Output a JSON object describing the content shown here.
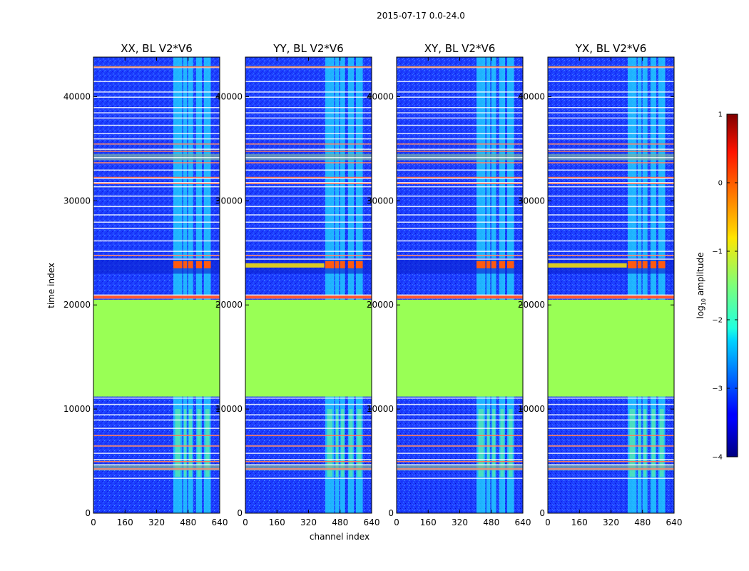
{
  "chart_data": {
    "type": "heatmap",
    "suptitle": "2015-07-17 0.0-24.0",
    "xlabel": "channel index",
    "ylabel": "time index",
    "xlim": [
      0,
      640
    ],
    "ylim": [
      0,
      43800
    ],
    "xticks": [
      0,
      160,
      320,
      480,
      640
    ],
    "yticks": [
      0,
      10000,
      20000,
      30000,
      40000
    ],
    "panels": [
      {
        "title": "XX, BL V2*V6"
      },
      {
        "title": "YY, BL V2*V6"
      },
      {
        "title": "XY, BL V2*V6"
      },
      {
        "title": "YX, BL V2*V6"
      }
    ],
    "colorbar": {
      "label": "log10 amplitude",
      "label_main": "log",
      "label_sub": "10",
      "label_rest": " amplitude",
      "range": [
        -4,
        1
      ],
      "ticks": [
        1,
        0,
        -1,
        -2,
        -3,
        -4
      ],
      "tick_labels": [
        "1",
        "0",
        "−1",
        "−2",
        "−3",
        "−4"
      ],
      "colormap": "jet"
    },
    "flagged_block": {
      "time_range": [
        11200,
        20500
      ],
      "log10_amplitude": -1.2
    },
    "bright_channel_bands": [
      [
        405,
        450
      ],
      [
        455,
        475
      ],
      [
        480,
        505
      ],
      [
        520,
        550
      ],
      [
        560,
        595
      ]
    ],
    "event_time_range": [
      23000,
      24500
    ],
    "colors": {
      "background": "#1c3cff",
      "flagged": "#99ff55",
      "gap_line": "#ffffff",
      "flag_line": "#ff7755"
    }
  }
}
